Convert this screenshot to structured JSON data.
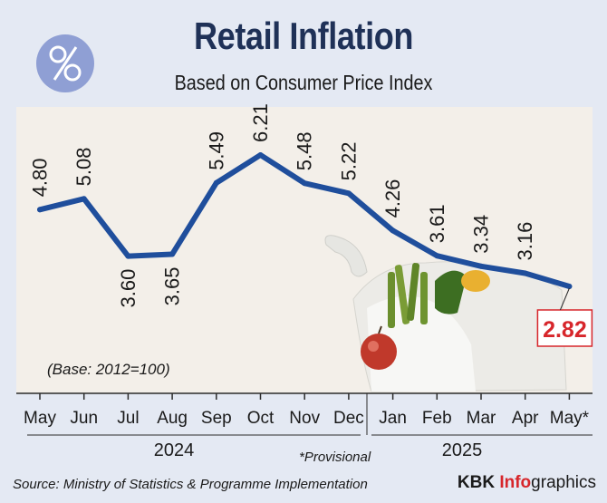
{
  "header": {
    "title": "Retail Inflation",
    "subtitle": "Based on Consumer Price Index",
    "badge_icon": "percent-icon"
  },
  "notes": {
    "base": "(Base: 2012=100)",
    "provisional": "*Provisional",
    "source": "Source: Ministry of Statistics & Programme Implementation"
  },
  "brand": {
    "part1": "KBK ",
    "part2": "Info",
    "part3": "graphics"
  },
  "colors": {
    "line": "#1f4e9c",
    "title": "#1f3157",
    "highlight_border": "#d7262b",
    "highlight_text": "#d7262b",
    "background": "#e4e9f3"
  },
  "chart_data": {
    "type": "line",
    "title": "Retail Inflation",
    "subtitle": "Based on Consumer Price Index",
    "categories": [
      "May",
      "Jun",
      "Jul",
      "Aug",
      "Sep",
      "Oct",
      "Nov",
      "Dec",
      "Jan",
      "Feb",
      "Mar",
      "Apr",
      "May*"
    ],
    "year_groups": [
      {
        "label": "2024",
        "months": [
          "May",
          "Jun",
          "Jul",
          "Aug",
          "Sep",
          "Oct",
          "Nov",
          "Dec"
        ]
      },
      {
        "label": "2025",
        "months": [
          "Jan",
          "Feb",
          "Mar",
          "Apr",
          "May*"
        ]
      }
    ],
    "series": [
      {
        "values": [
          4.8,
          5.08,
          3.6,
          3.65,
          5.49,
          6.21,
          5.48,
          5.22,
          4.26,
          3.61,
          3.34,
          3.16,
          2.82
        ],
        "labels": [
          "4.80",
          "5.08",
          "3.60",
          "3.65",
          "5.49",
          "6.21",
          "5.48",
          "5.22",
          "4.26",
          "3.61",
          "3.34",
          "3.16",
          "2.82"
        ]
      }
    ],
    "highlighted_point": {
      "category": "May*",
      "value": 2.82,
      "label": "2.82"
    },
    "label_below": [
      "Jul",
      "Aug"
    ],
    "grid": false,
    "legend": false
  }
}
